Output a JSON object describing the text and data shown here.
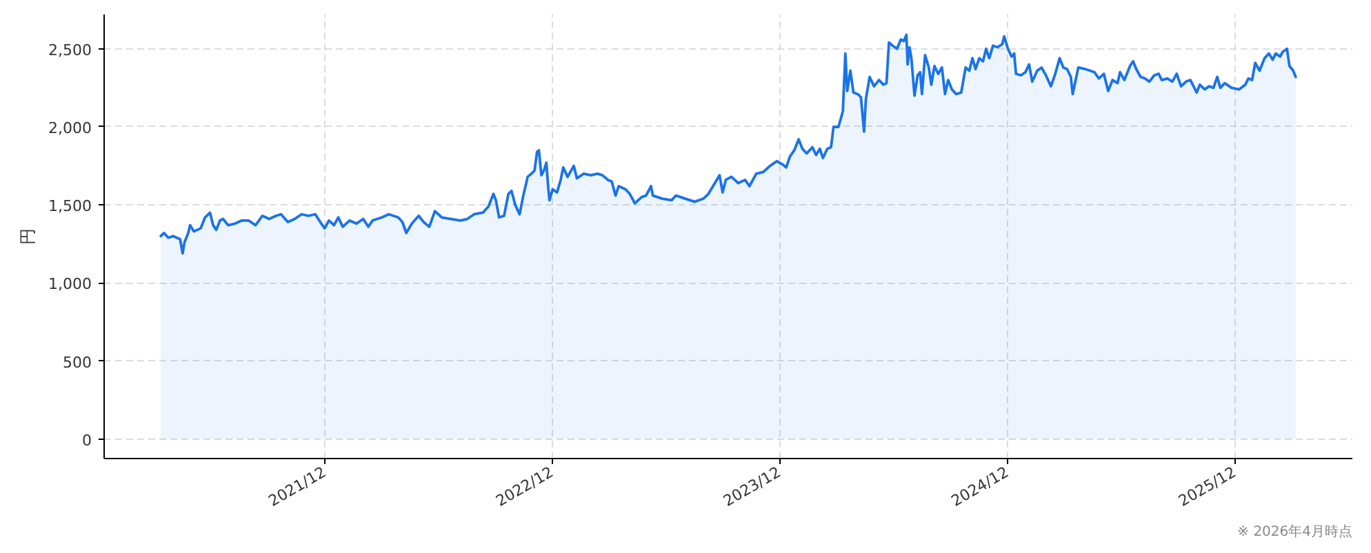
{
  "chart_data": {
    "type": "area",
    "ylabel": "円",
    "annotations": [
      "※ 2026年4月時点"
    ],
    "xlim": [
      "2020-12-12",
      "2026-06-08"
    ],
    "xticks": [
      {
        "value": "2021-12-01",
        "label": "2021/12"
      },
      {
        "value": "2022-12-01",
        "label": "2022/12"
      },
      {
        "value": "2023-12-01",
        "label": "2023/12"
      },
      {
        "value": "2024-12-01",
        "label": "2024/12"
      },
      {
        "value": "2025-12-01",
        "label": "2025/12"
      }
    ],
    "ylim": [
      -125,
      2720
    ],
    "yticks": [
      0,
      500,
      {
        "value": 1000,
        "label": "1,000"
      },
      {
        "value": 1500,
        "label": "1,500"
      },
      {
        "value": 2000,
        "label": "2,000"
      },
      {
        "value": 2500,
        "label": "2,500"
      }
    ],
    "grid": true,
    "x": [
      "2021-03-13",
      "2021-03-18",
      "2021-03-25",
      "2021-04-02",
      "2021-04-13",
      "2021-04-17",
      "2021-04-20",
      "2021-04-26",
      "2021-04-29",
      "2021-05-05",
      "2021-05-16",
      "2021-05-23",
      "2021-05-31",
      "2021-06-05",
      "2021-06-10",
      "2021-06-16",
      "2021-06-21",
      "2021-06-29",
      "2021-07-10",
      "2021-07-21",
      "2021-08-01",
      "2021-08-12",
      "2021-08-23",
      "2021-09-03",
      "2021-09-14",
      "2021-09-22",
      "2021-10-03",
      "2021-10-14",
      "2021-10-25",
      "2021-11-05",
      "2021-11-16",
      "2021-11-24",
      "2021-12-01",
      "2021-12-08",
      "2021-12-16",
      "2021-12-23",
      "2021-12-30",
      "2022-01-10",
      "2022-01-21",
      "2022-02-01",
      "2022-02-09",
      "2022-02-16",
      "2022-03-03",
      "2022-03-14",
      "2022-03-29",
      "2022-04-05",
      "2022-04-11",
      "2022-04-20",
      "2022-05-01",
      "2022-05-09",
      "2022-05-18",
      "2022-05-27",
      "2022-06-07",
      "2022-06-22",
      "2022-07-07",
      "2022-07-18",
      "2022-07-29",
      "2022-08-12",
      "2022-08-21",
      "2022-08-29",
      "2022-09-02",
      "2022-09-07",
      "2022-09-15",
      "2022-09-22",
      "2022-09-27",
      "2022-10-03",
      "2022-10-10",
      "2022-10-16",
      "2022-10-23",
      "2022-10-29",
      "2022-11-03",
      "2022-11-07",
      "2022-11-10",
      "2022-11-14",
      "2022-11-18",
      "2022-11-22",
      "2022-11-25",
      "2022-11-27",
      "2022-12-02",
      "2022-12-09",
      "2022-12-15",
      "2022-12-19",
      "2022-12-26",
      "2023-01-05",
      "2023-01-10",
      "2023-01-21",
      "2023-02-01",
      "2023-02-12",
      "2023-02-20",
      "2023-03-01",
      "2023-03-07",
      "2023-03-13",
      "2023-03-18",
      "2023-03-29",
      "2023-04-05",
      "2023-04-13",
      "2023-04-24",
      "2023-05-01",
      "2023-05-09",
      "2023-05-12",
      "2023-05-27",
      "2023-06-11",
      "2023-06-18",
      "2023-07-03",
      "2023-07-18",
      "2023-08-01",
      "2023-08-09",
      "2023-08-18",
      "2023-08-27",
      "2023-09-01",
      "2023-09-06",
      "2023-09-15",
      "2023-09-26",
      "2023-10-07",
      "2023-10-14",
      "2023-10-25",
      "2023-11-05",
      "2023-11-16",
      "2023-11-27",
      "2023-12-06",
      "2023-12-12",
      "2023-12-18",
      "2023-12-25",
      "2024-01-01",
      "2024-01-07",
      "2024-01-14",
      "2024-01-23",
      "2024-01-29",
      "2024-02-04",
      "2024-02-09",
      "2024-02-16",
      "2024-02-22",
      "2024-02-26",
      "2024-03-05",
      "2024-03-12",
      "2024-03-16",
      "2024-03-19",
      "2024-03-24",
      "2024-03-29",
      "2024-04-05",
      "2024-04-10",
      "2024-04-15",
      "2024-04-18",
      "2024-04-24",
      "2024-05-01",
      "2024-05-09",
      "2024-05-16",
      "2024-05-21",
      "2024-05-25",
      "2024-05-31",
      "2024-06-07",
      "2024-06-13",
      "2024-06-18",
      "2024-06-22",
      "2024-06-24",
      "2024-06-27",
      "2024-06-30",
      "2024-07-05",
      "2024-07-10",
      "2024-07-14",
      "2024-07-17",
      "2024-07-22",
      "2024-07-28",
      "2024-08-01",
      "2024-08-06",
      "2024-08-12",
      "2024-08-18",
      "2024-08-23",
      "2024-08-28",
      "2024-09-03",
      "2024-09-10",
      "2024-09-18",
      "2024-09-25",
      "2024-10-01",
      "2024-10-06",
      "2024-10-11",
      "2024-10-17",
      "2024-10-23",
      "2024-10-28",
      "2024-11-02",
      "2024-11-08",
      "2024-11-15",
      "2024-11-23",
      "2024-11-26",
      "2024-12-02",
      "2024-12-08",
      "2024-12-12",
      "2024-12-15",
      "2024-12-23",
      "2024-12-30",
      "2025-01-05",
      "2025-01-10",
      "2025-01-18",
      "2025-01-25",
      "2025-02-01",
      "2025-02-09",
      "2025-02-16",
      "2025-02-23",
      "2025-03-01",
      "2025-03-07",
      "2025-03-13",
      "2025-03-16",
      "2025-03-25",
      "2025-04-05",
      "2025-04-13",
      "2025-04-20",
      "2025-04-27",
      "2025-05-05",
      "2025-05-12",
      "2025-05-19",
      "2025-05-27",
      "2025-05-31",
      "2025-06-07",
      "2025-06-16",
      "2025-06-21",
      "2025-06-26",
      "2025-07-03",
      "2025-07-10",
      "2025-07-17",
      "2025-07-25",
      "2025-08-01",
      "2025-08-06",
      "2025-08-15",
      "2025-08-23",
      "2025-08-30",
      "2025-09-06",
      "2025-09-14",
      "2025-09-21",
      "2025-10-01",
      "2025-10-06",
      "2025-10-14",
      "2025-10-21",
      "2025-10-28",
      "2025-11-03",
      "2025-11-08",
      "2025-11-15",
      "2025-11-26",
      "2025-12-08",
      "2025-12-18",
      "2025-12-23",
      "2025-12-29",
      "2026-01-03",
      "2026-01-10",
      "2026-01-18",
      "2026-01-25",
      "2026-01-31",
      "2026-02-05",
      "2026-02-12",
      "2026-02-16",
      "2026-02-23",
      "2026-02-27",
      "2026-03-05",
      "2026-03-09"
    ],
    "series": [
      {
        "color": "#1a73e8",
        "values": [
          1300,
          1320,
          1290,
          1300,
          1280,
          1190,
          1260,
          1320,
          1370,
          1330,
          1350,
          1420,
          1450,
          1370,
          1340,
          1400,
          1410,
          1370,
          1380,
          1400,
          1400,
          1370,
          1430,
          1410,
          1430,
          1440,
          1390,
          1410,
          1440,
          1430,
          1440,
          1390,
          1350,
          1400,
          1370,
          1420,
          1360,
          1400,
          1380,
          1410,
          1360,
          1400,
          1420,
          1440,
          1420,
          1390,
          1320,
          1380,
          1430,
          1390,
          1360,
          1460,
          1420,
          1410,
          1400,
          1410,
          1440,
          1450,
          1490,
          1570,
          1530,
          1420,
          1430,
          1570,
          1590,
          1500,
          1440,
          1560,
          1680,
          1700,
          1720,
          1840,
          1850,
          1690,
          1720,
          1770,
          1610,
          1530,
          1600,
          1580,
          1660,
          1740,
          1680,
          1750,
          1670,
          1700,
          1690,
          1700,
          1690,
          1660,
          1650,
          1560,
          1620,
          1600,
          1570,
          1510,
          1550,
          1560,
          1620,
          1560,
          1540,
          1530,
          1560,
          1540,
          1520,
          1540,
          1570,
          1630,
          1690,
          1580,
          1660,
          1680,
          1640,
          1660,
          1620,
          1700,
          1710,
          1750,
          1780,
          1760,
          1740,
          1810,
          1850,
          1920,
          1860,
          1830,
          1870,
          1820,
          1860,
          1800,
          1860,
          1870,
          2000,
          2000,
          2100,
          2470,
          2230,
          2360,
          2220,
          2210,
          2190,
          1970,
          2180,
          2320,
          2260,
          2300,
          2270,
          2280,
          2540,
          2520,
          2500,
          2560,
          2550,
          2590,
          2400,
          2510,
          2440,
          2200,
          2330,
          2350,
          2210,
          2460,
          2380,
          2270,
          2390,
          2340,
          2380,
          2210,
          2300,
          2240,
          2210,
          2220,
          2380,
          2360,
          2440,
          2370,
          2440,
          2420,
          2500,
          2440,
          2520,
          2510,
          2530,
          2580,
          2500,
          2450,
          2470,
          2340,
          2330,
          2350,
          2400,
          2290,
          2360,
          2380,
          2330,
          2260,
          2340,
          2440,
          2380,
          2370,
          2320,
          2210,
          2380,
          2370,
          2360,
          2350,
          2310,
          2340,
          2230,
          2300,
          2280,
          2350,
          2300,
          2390,
          2420,
          2370,
          2320,
          2310,
          2290,
          2330,
          2340,
          2300,
          2310,
          2290,
          2340,
          2260,
          2290,
          2300,
          2220,
          2270,
          2240,
          2260,
          2250,
          2320,
          2250,
          2280,
          2250,
          2240,
          2270,
          2310,
          2300,
          2410,
          2360,
          2440,
          2470,
          2430,
          2470,
          2450,
          2480,
          2500,
          2390,
          2360,
          2320
        ]
      }
    ]
  }
}
